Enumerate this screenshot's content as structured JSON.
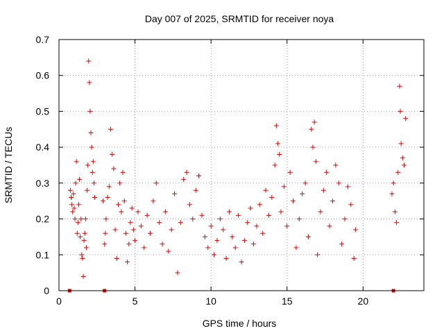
{
  "chart_data": {
    "type": "scatter",
    "title": "Day 007 of 2025, SRMTID for receiver noya",
    "xlabel": "GPS time / hours",
    "ylabel": "SRMTID / TECUs",
    "xlim": [
      0,
      24
    ],
    "ylim": [
      0,
      0.7
    ],
    "xticks": [
      0,
      5,
      10,
      15,
      20
    ],
    "xtick_labels": [
      "0",
      "5",
      "10",
      "15",
      "20"
    ],
    "yticks": [
      0,
      0.1,
      0.2,
      0.3,
      0.4,
      0.5,
      0.6,
      0.7
    ],
    "ytick_labels": [
      "0",
      "0.1",
      "0.2",
      "0.3",
      "0.4",
      "0.5",
      "0.6",
      "0.7"
    ],
    "grid": true,
    "marker": "plus",
    "color": "#e00000",
    "series": [
      {
        "name": "SRMTID",
        "points": [
          [
            0.75,
            0.28
          ],
          [
            0.8,
            0.26
          ],
          [
            0.85,
            0.24
          ],
          [
            0.9,
            0.22
          ],
          [
            0.95,
            0.27
          ],
          [
            1.0,
            0.23
          ],
          [
            1.05,
            0.2
          ],
          [
            1.1,
            0.3
          ],
          [
            1.15,
            0.36
          ],
          [
            1.2,
            0.16
          ],
          [
            1.25,
            0.19
          ],
          [
            1.3,
            0.24
          ],
          [
            1.35,
            0.31
          ],
          [
            1.4,
            0.15
          ],
          [
            1.45,
            0.2
          ],
          [
            1.5,
            0.1
          ],
          [
            1.55,
            0.09
          ],
          [
            1.6,
            0.04
          ],
          [
            1.65,
            0.14
          ],
          [
            1.7,
            0.16
          ],
          [
            1.75,
            0.2
          ],
          [
            1.8,
            0.12
          ],
          [
            1.85,
            0.28
          ],
          [
            1.9,
            0.35
          ],
          [
            1.95,
            0.64
          ],
          [
            2.0,
            0.58
          ],
          [
            2.05,
            0.5
          ],
          [
            2.1,
            0.44
          ],
          [
            2.15,
            0.4
          ],
          [
            2.2,
            0.33
          ],
          [
            2.25,
            0.36
          ],
          [
            2.3,
            0.3
          ],
          [
            2.35,
            0.26
          ],
          [
            2.9,
            0.25
          ],
          [
            3.0,
            0.13
          ],
          [
            3.05,
            0.16
          ],
          [
            3.1,
            0.2
          ],
          [
            3.2,
            0.26
          ],
          [
            3.3,
            0.29
          ],
          [
            3.4,
            0.45
          ],
          [
            3.5,
            0.38
          ],
          [
            3.6,
            0.34
          ],
          [
            3.7,
            0.17
          ],
          [
            3.8,
            0.09
          ],
          [
            3.9,
            0.24
          ],
          [
            4.0,
            0.3
          ],
          [
            4.1,
            0.22
          ],
          [
            4.2,
            0.33
          ],
          [
            4.3,
            0.25
          ],
          [
            4.4,
            0.16
          ],
          [
            4.5,
            0.08
          ],
          [
            4.6,
            0.13
          ],
          [
            4.7,
            0.19
          ],
          [
            4.8,
            0.23
          ],
          [
            4.9,
            0.17
          ],
          [
            5.0,
            0.14
          ],
          [
            5.2,
            0.22
          ],
          [
            5.4,
            0.18
          ],
          [
            5.6,
            0.12
          ],
          [
            5.8,
            0.21
          ],
          [
            6.0,
            0.16
          ],
          [
            6.2,
            0.25
          ],
          [
            6.4,
            0.3
          ],
          [
            6.6,
            0.19
          ],
          [
            6.8,
            0.13
          ],
          [
            7.0,
            0.22
          ],
          [
            7.2,
            0.11
          ],
          [
            7.4,
            0.17
          ],
          [
            7.6,
            0.27
          ],
          [
            7.8,
            0.05
          ],
          [
            8.0,
            0.19
          ],
          [
            8.2,
            0.31
          ],
          [
            8.4,
            0.33
          ],
          [
            8.6,
            0.24
          ],
          [
            8.8,
            0.2
          ],
          [
            9.0,
            0.28
          ],
          [
            9.2,
            0.32
          ],
          [
            9.4,
            0.21
          ],
          [
            9.6,
            0.15
          ],
          [
            9.8,
            0.12
          ],
          [
            10.0,
            0.18
          ],
          [
            10.2,
            0.1
          ],
          [
            10.4,
            0.14
          ],
          [
            10.6,
            0.2
          ],
          [
            10.8,
            0.17
          ],
          [
            11.0,
            0.09
          ],
          [
            11.2,
            0.22
          ],
          [
            11.4,
            0.15
          ],
          [
            11.6,
            0.12
          ],
          [
            11.8,
            0.21
          ],
          [
            12.0,
            0.08
          ],
          [
            12.2,
            0.14
          ],
          [
            12.4,
            0.19
          ],
          [
            12.6,
            0.23
          ],
          [
            12.8,
            0.13
          ],
          [
            13.0,
            0.18
          ],
          [
            13.2,
            0.24
          ],
          [
            13.4,
            0.16
          ],
          [
            13.6,
            0.28
          ],
          [
            13.8,
            0.21
          ],
          [
            14.0,
            0.26
          ],
          [
            14.2,
            0.35
          ],
          [
            14.3,
            0.46
          ],
          [
            14.4,
            0.41
          ],
          [
            14.5,
            0.38
          ],
          [
            14.6,
            0.22
          ],
          [
            14.8,
            0.29
          ],
          [
            15.0,
            0.18
          ],
          [
            15.2,
            0.33
          ],
          [
            15.4,
            0.25
          ],
          [
            15.6,
            0.12
          ],
          [
            15.8,
            0.2
          ],
          [
            16.0,
            0.27
          ],
          [
            16.2,
            0.3
          ],
          [
            16.4,
            0.15
          ],
          [
            16.6,
            0.45
          ],
          [
            16.7,
            0.4
          ],
          [
            16.8,
            0.47
          ],
          [
            16.9,
            0.36
          ],
          [
            17.0,
            0.1
          ],
          [
            17.2,
            0.22
          ],
          [
            17.4,
            0.28
          ],
          [
            17.6,
            0.33
          ],
          [
            17.8,
            0.18
          ],
          [
            18.0,
            0.25
          ],
          [
            18.2,
            0.35
          ],
          [
            18.4,
            0.3
          ],
          [
            18.6,
            0.13
          ],
          [
            18.8,
            0.2
          ],
          [
            19.0,
            0.29
          ],
          [
            19.2,
            0.24
          ],
          [
            19.4,
            0.09
          ],
          [
            19.5,
            0.17
          ],
          [
            21.9,
            0.27
          ],
          [
            22.0,
            0.3
          ],
          [
            22.1,
            0.22
          ],
          [
            22.2,
            0.19
          ],
          [
            22.3,
            0.33
          ],
          [
            22.4,
            0.57
          ],
          [
            22.45,
            0.5
          ],
          [
            22.5,
            0.41
          ],
          [
            22.6,
            0.37
          ],
          [
            22.7,
            0.35
          ],
          [
            22.8,
            0.48
          ]
        ]
      }
    ],
    "zero_markers": [
      0.7,
      3.0,
      22.0
    ]
  }
}
